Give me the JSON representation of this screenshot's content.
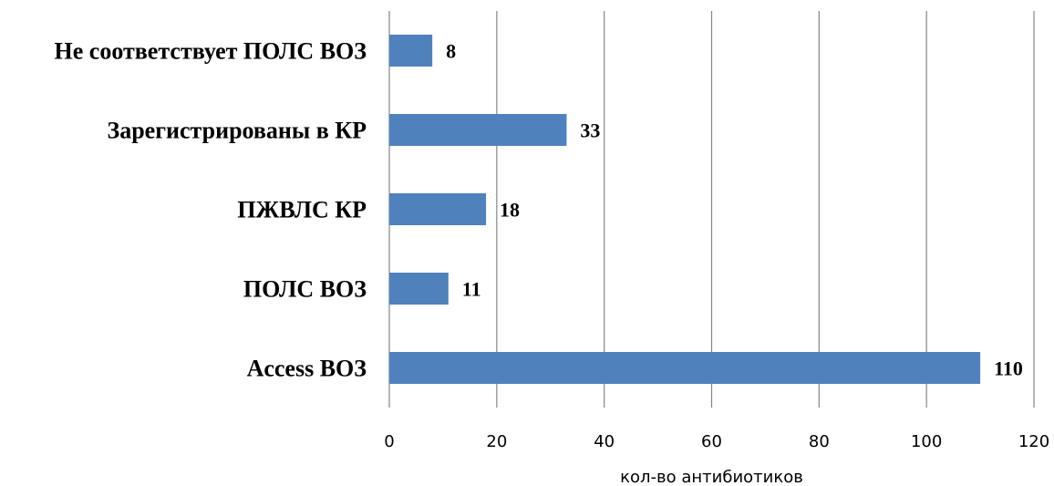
{
  "chart_data": {
    "type": "bar",
    "orientation": "horizontal",
    "categories": [
      "Не соответствует ПОЛС ВОЗ",
      "Зарегистрированы в КР",
      "ПЖВЛС КР",
      "ПОЛС ВОЗ",
      "Access ВОЗ"
    ],
    "values": [
      8,
      33,
      18,
      11,
      110
    ],
    "data_labels": [
      "8",
      "33",
      "18",
      "11",
      "110"
    ],
    "xlabel": "кол-во антибиотиков",
    "ylabel": "",
    "xlim": [
      0,
      120
    ],
    "xticks": [
      0,
      20,
      40,
      60,
      80,
      100,
      120
    ],
    "grid": true,
    "legend": "none",
    "bar_color": "#4F81BD",
    "grid_color": "#868686"
  }
}
